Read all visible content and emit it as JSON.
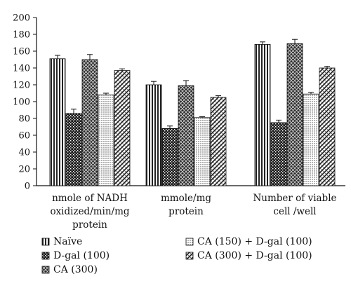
{
  "chart_data": {
    "type": "bar",
    "title": "",
    "xlabel": "",
    "ylabel": "",
    "ylim": [
      0,
      200
    ],
    "yticks": [
      0,
      20,
      40,
      60,
      80,
      100,
      120,
      140,
      160,
      180,
      200
    ],
    "categories": [
      [
        "nmole of NADH",
        "oxidized/min/mg",
        "protein"
      ],
      [
        "mmole/mg",
        "protein"
      ],
      [
        "Number of viable",
        "cell /well"
      ]
    ],
    "series": [
      {
        "name": "Naïve",
        "pattern": "vertical-stripes",
        "values": [
          151,
          120,
          168
        ],
        "errors": [
          4,
          4,
          3
        ]
      },
      {
        "name": "D-gal (100)",
        "pattern": "dark-checker",
        "values": [
          86,
          68,
          75
        ],
        "errors": [
          5,
          3,
          3
        ]
      },
      {
        "name": "CA (300)",
        "pattern": "dark-cross",
        "values": [
          150,
          119,
          169
        ],
        "errors": [
          6,
          6,
          5
        ]
      },
      {
        "name": "CA (150) + D-gal (100)",
        "pattern": "light-dots",
        "values": [
          108,
          81,
          109
        ],
        "errors": [
          2,
          1,
          2
        ]
      },
      {
        "name": "CA (300) + D-gal (100)",
        "pattern": "diagonal-weave",
        "values": [
          137,
          105,
          140
        ],
        "errors": [
          2,
          2,
          2
        ]
      }
    ],
    "grid": false,
    "legend_position": "bottom"
  }
}
